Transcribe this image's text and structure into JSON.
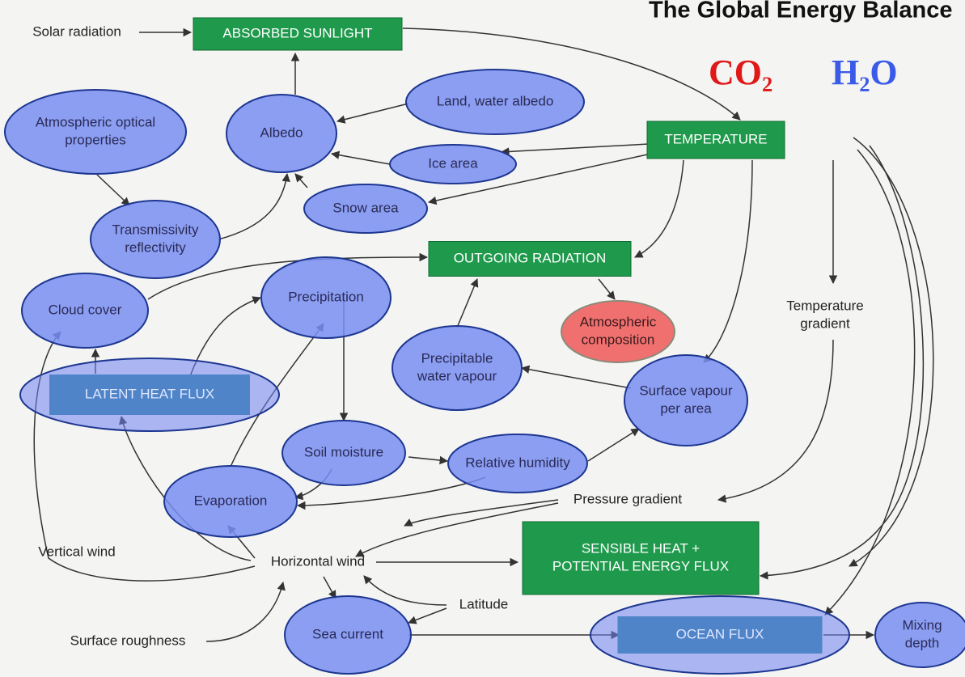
{
  "title": "The Global Energy Balance",
  "gases": [
    "CO₂",
    "H₂O"
  ],
  "nodes": [
    {
      "lines": [
        "Solar radiation"
      ]
    },
    {
      "lines": [
        "ABSORBED SUNLIGHT"
      ]
    },
    {
      "lines": [
        "Land, water albedo"
      ]
    },
    {
      "lines": [
        "Atmospheric optical",
        "properties"
      ]
    },
    {
      "lines": [
        "Albedo"
      ]
    },
    {
      "lines": [
        "Ice area"
      ]
    },
    {
      "lines": [
        "TEMPERATURE"
      ]
    },
    {
      "lines": [
        "Snow area"
      ]
    },
    {
      "lines": [
        "Transmissivity",
        "reflectivity"
      ]
    },
    {
      "lines": [
        "OUTGOING RADIATION"
      ]
    },
    {
      "lines": [
        "Precipitation"
      ]
    },
    {
      "lines": [
        "Cloud cover"
      ]
    },
    {
      "lines": [
        "Atmospheric",
        "composition"
      ]
    },
    {
      "lines": [
        "Temperature",
        "gradient"
      ]
    },
    {
      "lines": [
        "Precipitable",
        "water vapour"
      ]
    },
    {
      "lines": [
        "LATENT HEAT FLUX"
      ]
    },
    {
      "lines": [
        "Surface vapour",
        "per area"
      ]
    },
    {
      "lines": [
        "Soil moisture"
      ]
    },
    {
      "lines": [
        "Relative humidity"
      ]
    },
    {
      "lines": [
        "Evaporation"
      ]
    },
    {
      "lines": [
        "Pressure gradient"
      ]
    },
    {
      "lines": [
        "Vertical wind"
      ]
    },
    {
      "lines": [
        "Horizontal wind"
      ]
    },
    {
      "lines": [
        "SENSIBLE HEAT +",
        "POTENTIAL ENERGY FLUX"
      ]
    },
    {
      "lines": [
        "Latitude"
      ]
    },
    {
      "lines": [
        "Sea current"
      ]
    },
    {
      "lines": [
        "OCEAN FLUX"
      ]
    },
    {
      "lines": [
        "Mixing",
        "depth"
      ]
    },
    {
      "lines": [
        "Surface roughness"
      ]
    }
  ]
}
